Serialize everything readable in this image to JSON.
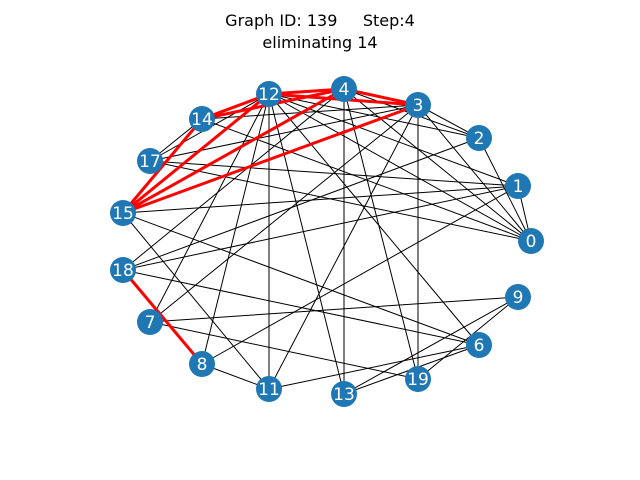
{
  "title": {
    "line1": "Graph ID: 139     Step:4",
    "line2": "eliminating 14"
  },
  "colors": {
    "node": "#1f77b4",
    "edge": "#000000",
    "highlight_edge": "#ff0000",
    "label": "#ffffff"
  },
  "graph": {
    "nodes": [
      "0",
      "1",
      "2",
      "3",
      "4",
      "6",
      "7",
      "8",
      "9",
      "11",
      "12",
      "13",
      "14",
      "15",
      "17",
      "18",
      "19"
    ],
    "edges": [
      [
        "12",
        "4"
      ],
      [
        "12",
        "3"
      ],
      [
        "12",
        "14"
      ],
      [
        "12",
        "2"
      ],
      [
        "12",
        "1"
      ],
      [
        "12",
        "0"
      ],
      [
        "12",
        "17"
      ],
      [
        "12",
        "7"
      ],
      [
        "12",
        "8"
      ],
      [
        "12",
        "11"
      ],
      [
        "12",
        "13"
      ],
      [
        "12",
        "6"
      ],
      [
        "4",
        "3"
      ],
      [
        "4",
        "14"
      ],
      [
        "4",
        "2"
      ],
      [
        "4",
        "0"
      ],
      [
        "4",
        "18"
      ],
      [
        "4",
        "13"
      ],
      [
        "4",
        "19"
      ],
      [
        "14",
        "3"
      ],
      [
        "14",
        "0"
      ],
      [
        "14",
        "17"
      ],
      [
        "3",
        "2"
      ],
      [
        "3",
        "17"
      ],
      [
        "3",
        "0"
      ],
      [
        "3",
        "7"
      ],
      [
        "3",
        "11"
      ],
      [
        "3",
        "19"
      ],
      [
        "2",
        "18"
      ],
      [
        "2",
        "0"
      ],
      [
        "17",
        "1"
      ],
      [
        "17",
        "0"
      ],
      [
        "15",
        "1"
      ],
      [
        "15",
        "11"
      ],
      [
        "15",
        "6"
      ],
      [
        "1",
        "18"
      ],
      [
        "1",
        "0"
      ],
      [
        "1",
        "8"
      ],
      [
        "18",
        "6"
      ],
      [
        "7",
        "9"
      ],
      [
        "7",
        "19"
      ],
      [
        "8",
        "11"
      ],
      [
        "11",
        "6"
      ],
      [
        "9",
        "13"
      ],
      [
        "9",
        "19"
      ],
      [
        "6",
        "13"
      ]
    ],
    "highlighted_edges": [
      [
        "12",
        "4"
      ],
      [
        "12",
        "3"
      ],
      [
        "4",
        "3"
      ],
      [
        "14",
        "12"
      ],
      [
        "14",
        "4"
      ],
      [
        "14",
        "15"
      ],
      [
        "15",
        "12"
      ],
      [
        "15",
        "4"
      ],
      [
        "15",
        "3"
      ],
      [
        "18",
        "8"
      ]
    ]
  }
}
